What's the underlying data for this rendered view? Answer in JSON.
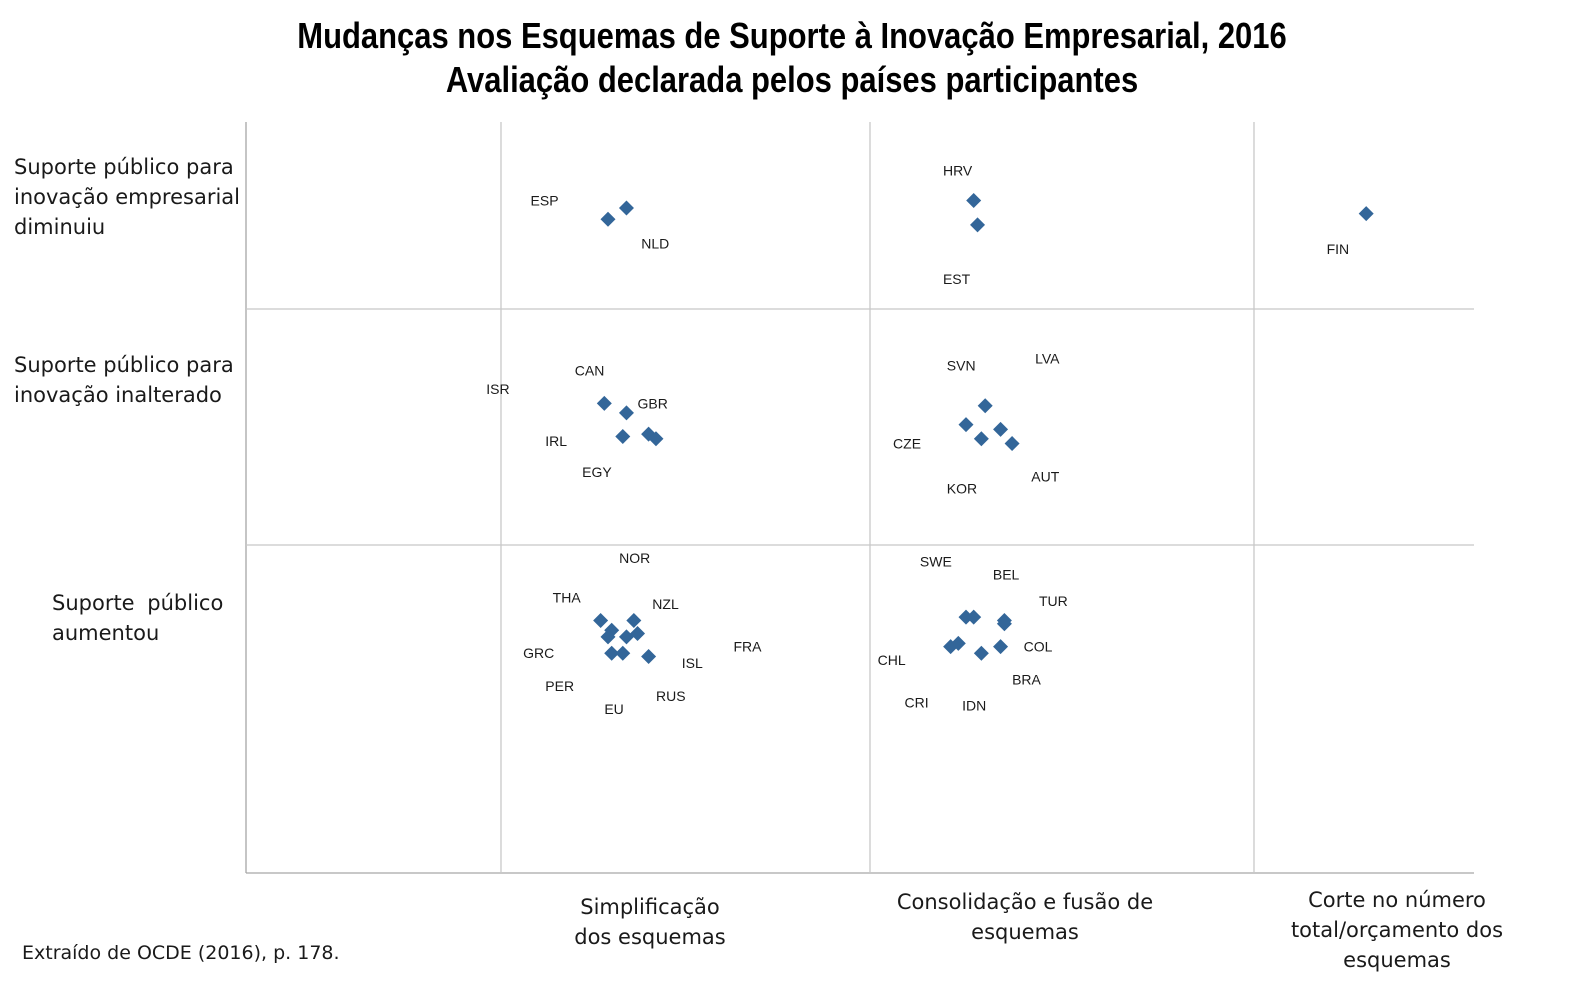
{
  "title_lines": [
    "Mudanças nos Esquemas de Suporte à Inovação Empresarial, 2016",
    "Avaliação declarada pelos países participantes"
  ],
  "source": "Extraído de OCDE (2016), p. 178.",
  "colors": {
    "marker": "#336699",
    "grid": "#c8c8c8",
    "axis": "#a6a6a6"
  },
  "chart_data": {
    "type": "scatter",
    "title": "Mudanças nos Esquemas de Suporte à Inovação Empresarial, 2016",
    "subtitle": "Avaliação declarada pelos países participantes",
    "x_categories": [
      "",
      "Simplificação dos esquemas",
      "Consolidação e fusão de esquemas",
      "Corte no número total/orçamento dos esquemas"
    ],
    "y_categories": [
      "Suporte público para inovação empresarial diminuiu",
      "Suporte público para inovação inalterado",
      "Suporte público aumentou"
    ],
    "marker": "diamond",
    "labels": [
      {
        "text": "ESP",
        "col": 1,
        "row": 0,
        "dx": 0.08,
        "dy": 0.42
      },
      {
        "text": "NLD",
        "col": 1,
        "row": 0,
        "dx": 0.38,
        "dy": 0.65
      },
      {
        "text": "HRV",
        "col": 2,
        "row": 0,
        "dx": 0.19,
        "dy": 0.26
      },
      {
        "text": "EST",
        "col": 2,
        "row": 0,
        "dx": 0.19,
        "dy": 0.84
      },
      {
        "text": "FIN",
        "col": 3,
        "row": 0,
        "dx": 0.33,
        "dy": 0.68
      },
      {
        "text": "ISR",
        "col": 1,
        "row": 1,
        "dx": -0.04,
        "dy": 0.34
      },
      {
        "text": "CAN",
        "col": 1,
        "row": 1,
        "dx": 0.2,
        "dy": 0.26
      },
      {
        "text": "GBR",
        "col": 1,
        "row": 1,
        "dx": 0.37,
        "dy": 0.4
      },
      {
        "text": "IRL",
        "col": 1,
        "row": 1,
        "dx": 0.12,
        "dy": 0.56
      },
      {
        "text": "EGY",
        "col": 1,
        "row": 1,
        "dx": 0.22,
        "dy": 0.69
      },
      {
        "text": "SVN",
        "col": 2,
        "row": 1,
        "dx": 0.2,
        "dy": 0.24
      },
      {
        "text": "LVA",
        "col": 2,
        "row": 1,
        "dx": 0.43,
        "dy": 0.21
      },
      {
        "text": "CZE",
        "col": 2,
        "row": 1,
        "dx": 0.06,
        "dy": 0.57
      },
      {
        "text": "KOR",
        "col": 2,
        "row": 1,
        "dx": 0.2,
        "dy": 0.76
      },
      {
        "text": "AUT",
        "col": 2,
        "row": 1,
        "dx": 0.42,
        "dy": 0.71
      },
      {
        "text": "NOR",
        "col": 1,
        "row": 2,
        "dx": 0.32,
        "dy": 0.04
      },
      {
        "text": "THA",
        "col": 1,
        "row": 2,
        "dx": 0.14,
        "dy": 0.16
      },
      {
        "text": "NZL",
        "col": 1,
        "row": 2,
        "dx": 0.41,
        "dy": 0.18
      },
      {
        "text": "FRA",
        "col": 1,
        "row": 2,
        "dx": 0.63,
        "dy": 0.31
      },
      {
        "text": "GRC",
        "col": 1,
        "row": 2,
        "dx": 0.06,
        "dy": 0.33
      },
      {
        "text": "ISL",
        "col": 1,
        "row": 2,
        "dx": 0.49,
        "dy": 0.36
      },
      {
        "text": "PER",
        "col": 1,
        "row": 2,
        "dx": 0.12,
        "dy": 0.43
      },
      {
        "text": "RUS",
        "col": 1,
        "row": 2,
        "dx": 0.42,
        "dy": 0.46
      },
      {
        "text": "EU",
        "col": 1,
        "row": 2,
        "dx": 0.28,
        "dy": 0.5
      },
      {
        "text": "SWE",
        "col": 2,
        "row": 2,
        "dx": 0.13,
        "dy": 0.05
      },
      {
        "text": "BEL",
        "col": 2,
        "row": 2,
        "dx": 0.32,
        "dy": 0.09
      },
      {
        "text": "TUR",
        "col": 2,
        "row": 2,
        "dx": 0.44,
        "dy": 0.17
      },
      {
        "text": "CHL",
        "col": 2,
        "row": 2,
        "dx": 0.02,
        "dy": 0.35
      },
      {
        "text": "COL",
        "col": 2,
        "row": 2,
        "dx": 0.4,
        "dy": 0.31
      },
      {
        "text": "BRA",
        "col": 2,
        "row": 2,
        "dx": 0.37,
        "dy": 0.41
      },
      {
        "text": "CRI",
        "col": 2,
        "row": 2,
        "dx": 0.09,
        "dy": 0.48
      },
      {
        "text": "IDN",
        "col": 2,
        "row": 2,
        "dx": 0.24,
        "dy": 0.49
      }
    ],
    "points": [
      {
        "col": 1,
        "row": 0,
        "dx": 0.29,
        "dy": 0.52
      },
      {
        "col": 1,
        "row": 0,
        "dx": 0.34,
        "dy": 0.46
      },
      {
        "col": 2,
        "row": 0,
        "dx": 0.27,
        "dy": 0.42
      },
      {
        "col": 2,
        "row": 0,
        "dx": 0.28,
        "dy": 0.55
      },
      {
        "col": 3,
        "row": 0,
        "dx": 0.51,
        "dy": 0.49
      },
      {
        "col": 1,
        "row": 1,
        "dx": 0.28,
        "dy": 0.4
      },
      {
        "col": 1,
        "row": 1,
        "dx": 0.34,
        "dy": 0.44
      },
      {
        "col": 1,
        "row": 1,
        "dx": 0.33,
        "dy": 0.54
      },
      {
        "col": 1,
        "row": 1,
        "dx": 0.4,
        "dy": 0.53
      },
      {
        "col": 1,
        "row": 1,
        "dx": 0.42,
        "dy": 0.55
      },
      {
        "col": 2,
        "row": 1,
        "dx": 0.3,
        "dy": 0.41
      },
      {
        "col": 2,
        "row": 1,
        "dx": 0.25,
        "dy": 0.49
      },
      {
        "col": 2,
        "row": 1,
        "dx": 0.29,
        "dy": 0.55
      },
      {
        "col": 2,
        "row": 1,
        "dx": 0.34,
        "dy": 0.51
      },
      {
        "col": 2,
        "row": 1,
        "dx": 0.37,
        "dy": 0.57
      },
      {
        "col": 1,
        "row": 2,
        "dx": 0.27,
        "dy": 0.23
      },
      {
        "col": 1,
        "row": 2,
        "dx": 0.3,
        "dy": 0.26
      },
      {
        "col": 1,
        "row": 2,
        "dx": 0.29,
        "dy": 0.28
      },
      {
        "col": 1,
        "row": 2,
        "dx": 0.36,
        "dy": 0.23
      },
      {
        "col": 1,
        "row": 2,
        "dx": 0.34,
        "dy": 0.28
      },
      {
        "col": 1,
        "row": 2,
        "dx": 0.37,
        "dy": 0.27
      },
      {
        "col": 1,
        "row": 2,
        "dx": 0.3,
        "dy": 0.33
      },
      {
        "col": 1,
        "row": 2,
        "dx": 0.33,
        "dy": 0.33
      },
      {
        "col": 1,
        "row": 2,
        "dx": 0.4,
        "dy": 0.34
      },
      {
        "col": 2,
        "row": 2,
        "dx": 0.25,
        "dy": 0.22
      },
      {
        "col": 2,
        "row": 2,
        "dx": 0.27,
        "dy": 0.22
      },
      {
        "col": 2,
        "row": 2,
        "dx": 0.35,
        "dy": 0.23
      },
      {
        "col": 2,
        "row": 2,
        "dx": 0.35,
        "dy": 0.24
      },
      {
        "col": 2,
        "row": 2,
        "dx": 0.23,
        "dy": 0.3
      },
      {
        "col": 2,
        "row": 2,
        "dx": 0.21,
        "dy": 0.31
      },
      {
        "col": 2,
        "row": 2,
        "dx": 0.29,
        "dy": 0.33
      },
      {
        "col": 2,
        "row": 2,
        "dx": 0.34,
        "dy": 0.31
      }
    ]
  }
}
